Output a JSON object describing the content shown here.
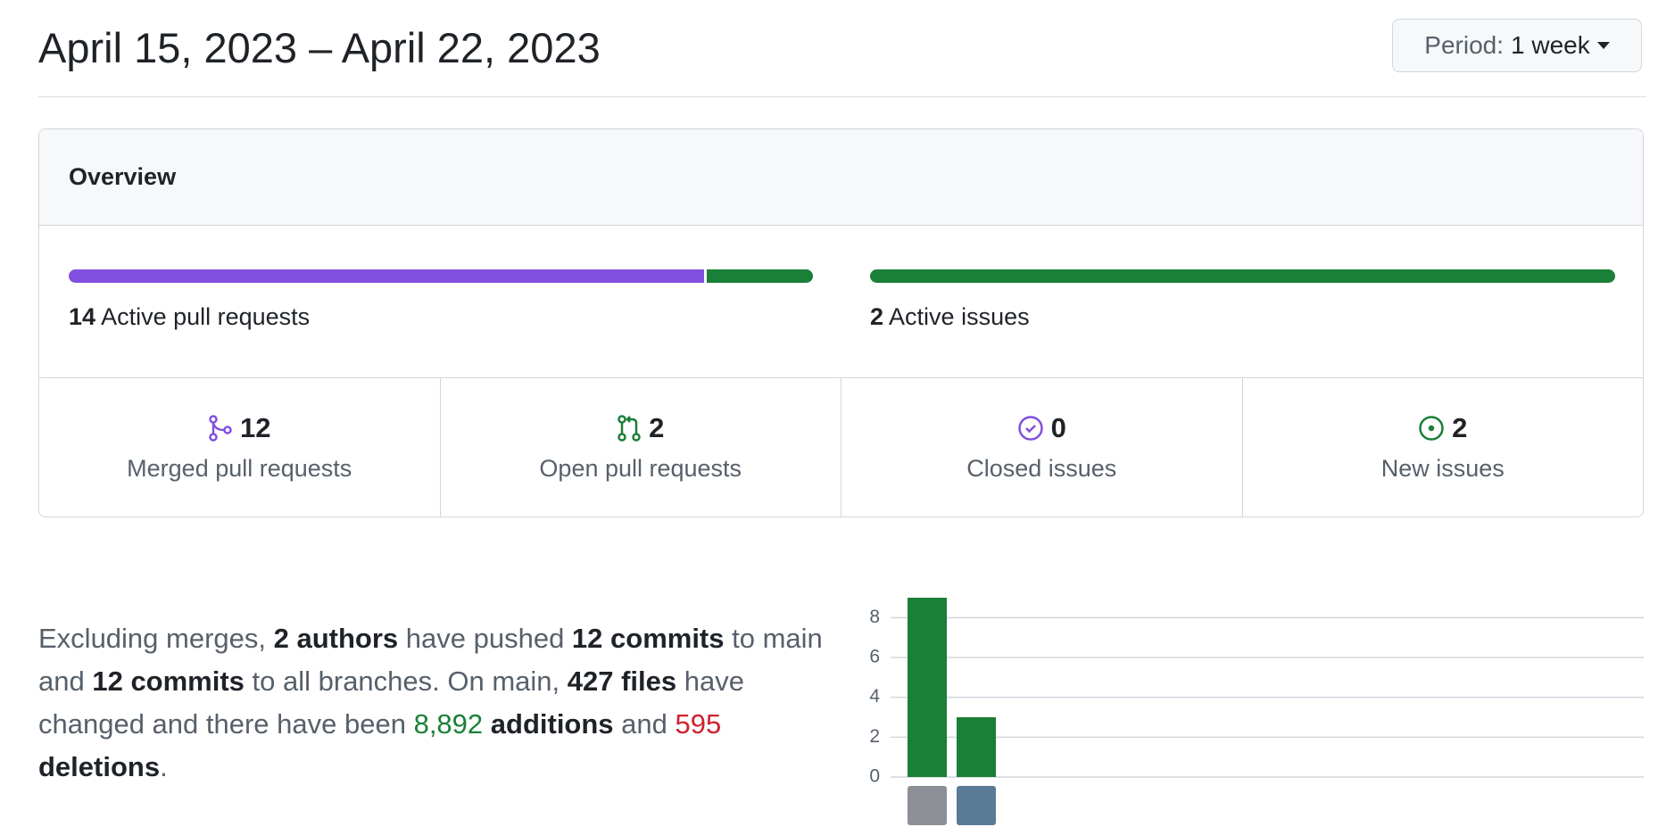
{
  "header": {
    "title": "April 15, 2023 – April 22, 2023",
    "period_label": "Period:",
    "period_value": "1 week"
  },
  "overview": {
    "title": "Overview",
    "active_pull_requests": {
      "count": 14,
      "label": "Active pull requests"
    },
    "active_issues": {
      "count": 2,
      "label": "Active issues"
    },
    "stats": [
      {
        "value": 12,
        "label": "Merged pull requests",
        "color": "#8250df"
      },
      {
        "value": 2,
        "label": "Open pull requests",
        "color": "#1a7f37"
      },
      {
        "value": 0,
        "label": "Closed issues",
        "color": "#8250df"
      },
      {
        "value": 2,
        "label": "New issues",
        "color": "#1a7f37"
      }
    ]
  },
  "summary": [
    "Excluding merges, ",
    "2 authors",
    " have pushed ",
    "12 commits",
    " to main and ",
    "12 commits",
    " to all branches. On main, ",
    "427 files",
    " have changed and there have been ",
    "8,892",
    " additions",
    " and ",
    "595",
    " deletions",
    "."
  ],
  "chart_data": {
    "type": "bar",
    "categories": [
      null,
      null
    ],
    "values": [
      9,
      3
    ],
    "color": "#1a7f37",
    "ylim": [
      0,
      9
    ],
    "yticks": [
      0,
      2,
      4,
      6,
      8
    ],
    "grid": true
  }
}
